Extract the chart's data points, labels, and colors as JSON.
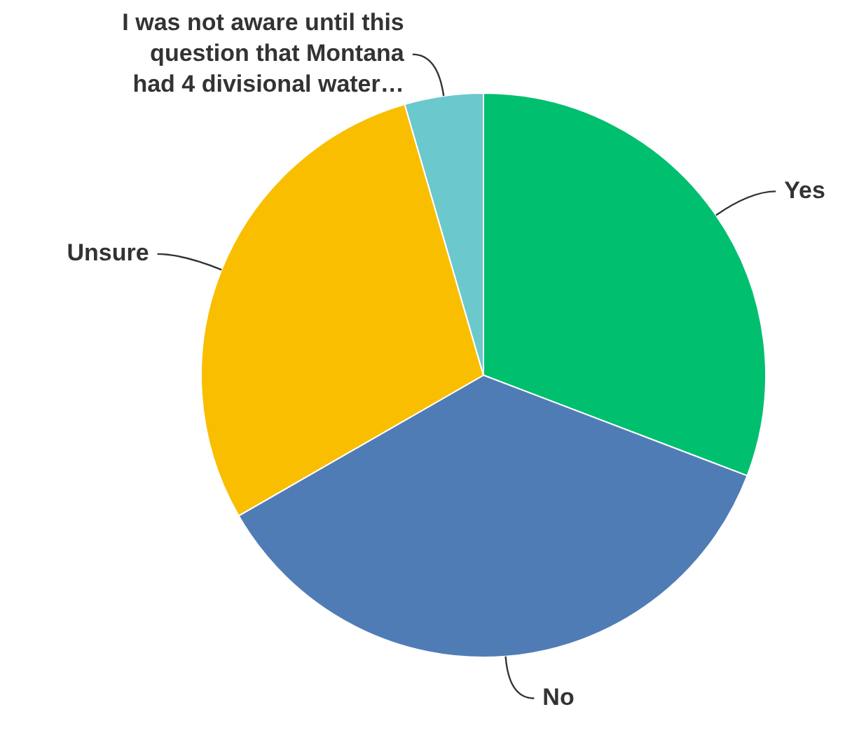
{
  "chart_data": {
    "type": "pie",
    "categories": [
      "Yes",
      "No",
      "Unsure",
      "I was not aware until this question that Montana had 4 divisional water…"
    ],
    "values": [
      30.8,
      35.9,
      28.8,
      4.5
    ],
    "colors": [
      "#00bf6f",
      "#507cb6",
      "#f9be00",
      "#6bc8cd"
    ],
    "legend": false
  }
}
